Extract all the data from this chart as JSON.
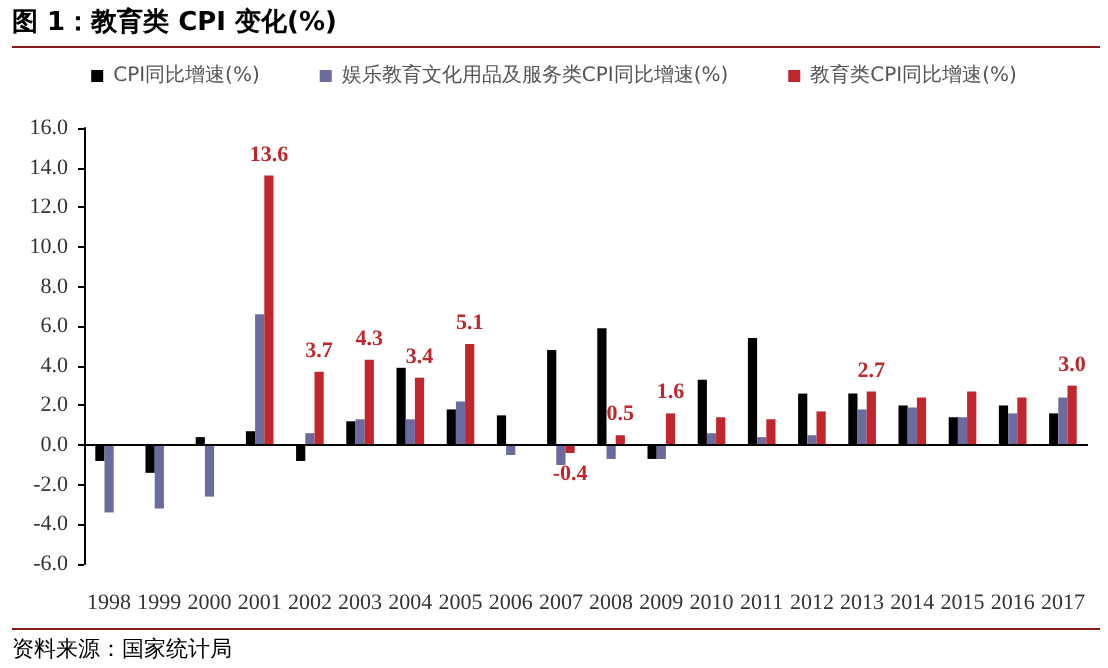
{
  "chart_data": {
    "type": "bar",
    "title": "图 1：教育类 CPI 变化(%)",
    "categories": [
      "1998",
      "1999",
      "2000",
      "2001",
      "2002",
      "2003",
      "2004",
      "2005",
      "2006",
      "2007",
      "2008",
      "2009",
      "2010",
      "2011",
      "2012",
      "2013",
      "2014",
      "2015",
      "2016",
      "2017"
    ],
    "series": [
      {
        "name": "CPI同比增速(%)",
        "color": "#000000",
        "values": [
          -0.8,
          -1.4,
          0.4,
          0.7,
          -0.8,
          1.2,
          3.9,
          1.8,
          1.5,
          4.8,
          5.9,
          -0.7,
          3.3,
          5.4,
          2.6,
          2.6,
          2.0,
          1.4,
          2.0,
          1.6
        ]
      },
      {
        "name": "娱乐教育文化用品及服务类CPI同比增速(%)",
        "color": "#6b6b9e",
        "values": [
          -3.4,
          -3.2,
          -2.6,
          6.6,
          0.6,
          1.3,
          1.3,
          2.2,
          -0.5,
          -1.0,
          -0.7,
          -0.7,
          0.6,
          0.4,
          0.5,
          1.8,
          1.9,
          1.4,
          1.6,
          2.4
        ]
      },
      {
        "name": "教育类CPI同比增速(%)",
        "color": "#c0262c",
        "values": [
          null,
          null,
          null,
          13.6,
          3.7,
          4.3,
          3.4,
          5.1,
          null,
          -0.4,
          0.5,
          1.6,
          1.4,
          1.3,
          1.7,
          2.7,
          2.4,
          2.7,
          2.4,
          3.0
        ],
        "value_labels": [
          null,
          null,
          null,
          "13.6",
          "3.7",
          "4.3",
          "3.4",
          "5.1",
          null,
          "-0.4",
          "0.5",
          "1.6",
          null,
          null,
          null,
          "2.7",
          null,
          null,
          null,
          "3.0"
        ]
      }
    ],
    "ylim": [
      -6,
      16
    ],
    "yticks": [
      {
        "value": -6,
        "label": "-6.0"
      },
      {
        "value": -4,
        "label": "-4.0"
      },
      {
        "value": -2,
        "label": "-2.0"
      },
      {
        "value": 0,
        "label": "0.0"
      },
      {
        "value": 2,
        "label": "2.0"
      },
      {
        "value": 4,
        "label": "4.0"
      },
      {
        "value": 6,
        "label": "6.0"
      },
      {
        "value": 8,
        "label": "8.0"
      },
      {
        "value": 10,
        "label": "10.0"
      },
      {
        "value": 12,
        "label": "12.0"
      },
      {
        "value": 14,
        "label": "14.0"
      },
      {
        "value": 16,
        "label": "16.0"
      }
    ],
    "grid": false,
    "legend": "top",
    "ref_lines": [
      {
        "axis": "y",
        "value": 0,
        "color": "#000000",
        "line_style": "solid"
      }
    ],
    "annotations": [
      "资料来源：国家统计局"
    ]
  }
}
